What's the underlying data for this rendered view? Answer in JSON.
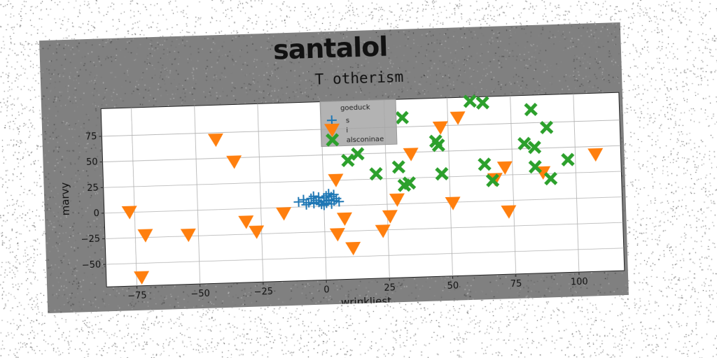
{
  "chart_data": {
    "type": "scatter",
    "suptitle": "santalol",
    "title": "T otherism",
    "xlabel": "wrinkliest",
    "ylabel": "marvy",
    "xlim": [
      -87,
      118
    ],
    "ylim": [
      -72,
      102
    ],
    "xticks": [
      -75,
      -50,
      -25,
      0,
      25,
      50,
      75,
      100
    ],
    "yticks": [
      -50,
      -25,
      0,
      25,
      50,
      75
    ],
    "xtick_labels": [
      "−75",
      "−50",
      "−25",
      "0",
      "25",
      "50",
      "75",
      "100"
    ],
    "ytick_labels": [
      "−50",
      "−25",
      "0",
      "25",
      "50",
      "75"
    ],
    "grid": true,
    "legend": {
      "title": "goeduck",
      "placement": "top-center",
      "labels": [
        "s",
        "i",
        "alsconinae"
      ]
    },
    "colors": [
      "#1f77b4",
      "#ff7f0e",
      "#2ca02c"
    ],
    "series": [
      {
        "name": "s",
        "marker": "plus",
        "points": [
          [
            -10,
            5
          ],
          [
            -8,
            7
          ],
          [
            -6,
            4
          ],
          [
            -5,
            8
          ],
          [
            -4,
            3
          ],
          [
            -3,
            6
          ],
          [
            -2,
            9
          ],
          [
            -1,
            2
          ],
          [
            0,
            5
          ],
          [
            0,
            8
          ],
          [
            1,
            3
          ],
          [
            1,
            10
          ],
          [
            2,
            6
          ],
          [
            3,
            2
          ],
          [
            3,
            9
          ],
          [
            4,
            5
          ],
          [
            4,
            11
          ],
          [
            5,
            7
          ],
          [
            -7,
            2
          ],
          [
            -4,
            10
          ],
          [
            2,
            12
          ],
          [
            6,
            4
          ],
          [
            -2,
            4
          ],
          [
            0,
            1
          ]
        ]
      },
      {
        "name": "i",
        "marker": "triangle-down",
        "points": [
          [
            -77,
            0
          ],
          [
            -71,
            -23
          ],
          [
            -54,
            -24
          ],
          [
            -42,
            68
          ],
          [
            -35,
            46
          ],
          [
            -31,
            -13
          ],
          [
            -27,
            -23
          ],
          [
            -16,
            -6
          ],
          [
            -73,
            -64
          ],
          [
            5,
            25
          ],
          [
            8,
            -13
          ],
          [
            5,
            -28
          ],
          [
            11,
            -42
          ],
          [
            23,
            -26
          ],
          [
            26,
            -12
          ],
          [
            29,
            4
          ],
          [
            35,
            48
          ],
          [
            47,
            73
          ],
          [
            54,
            82
          ],
          [
            51,
            -1
          ],
          [
            68,
            21
          ],
          [
            72,
            32
          ],
          [
            73,
            -11
          ],
          [
            87,
            26
          ],
          [
            108,
            42
          ]
        ]
      },
      {
        "name": "alsconinae",
        "marker": "x",
        "points": [
          [
            10,
            44
          ],
          [
            14,
            50
          ],
          [
            21,
            30
          ],
          [
            30,
            36
          ],
          [
            32,
            18
          ],
          [
            34,
            20
          ],
          [
            32,
            84
          ],
          [
            45,
            60
          ],
          [
            46,
            56
          ],
          [
            47,
            28
          ],
          [
            59,
            98
          ],
          [
            64,
            96
          ],
          [
            64,
            36
          ],
          [
            67,
            20
          ],
          [
            80,
            55
          ],
          [
            84,
            51
          ],
          [
            84,
            32
          ],
          [
            83,
            88
          ],
          [
            89,
            70
          ],
          [
            90,
            20
          ],
          [
            97,
            38
          ]
        ]
      }
    ]
  }
}
